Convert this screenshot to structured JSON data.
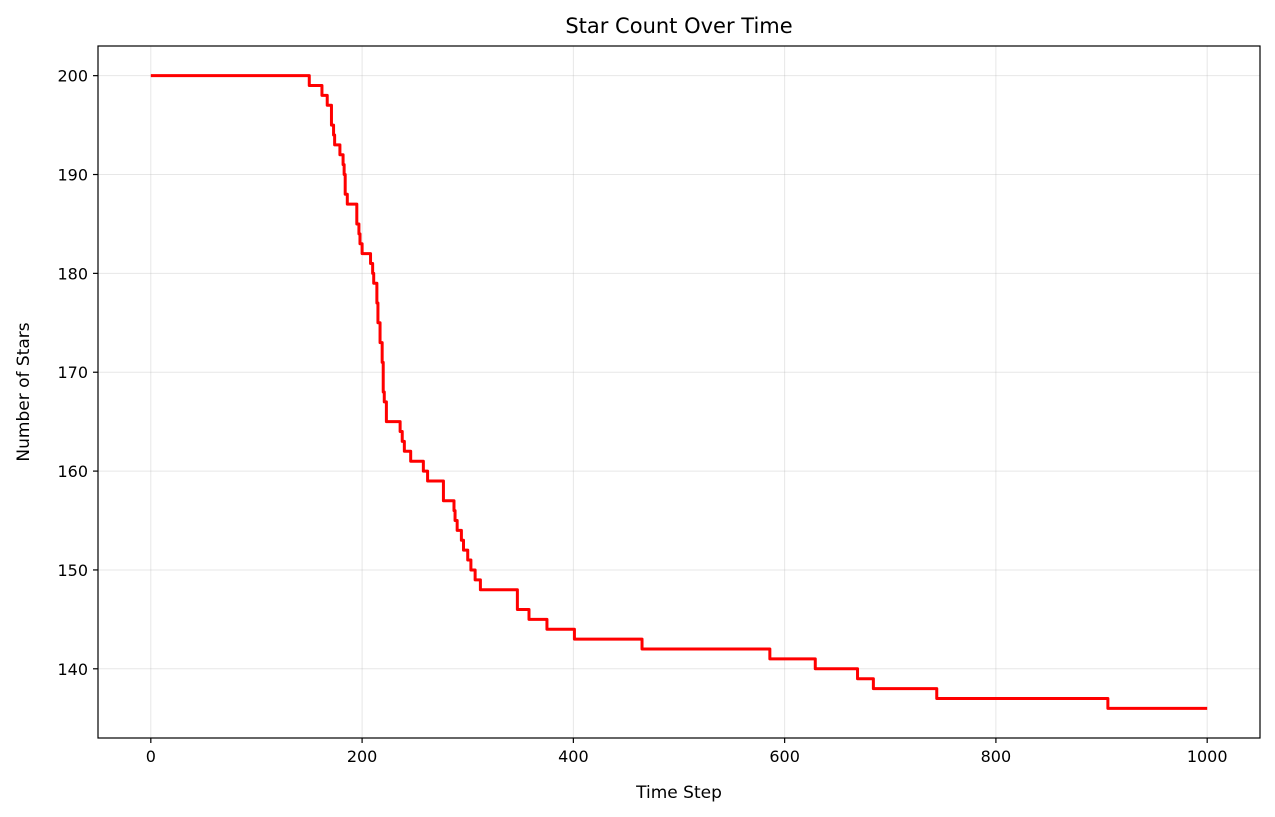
{
  "chart_data": {
    "type": "line",
    "title": "Star Count Over Time",
    "xlabel": "Time Step",
    "ylabel": "Number of Stars",
    "xlim": [
      -50,
      1050
    ],
    "ylim": [
      133,
      203
    ],
    "xticks": [
      0,
      200,
      400,
      600,
      800,
      1000
    ],
    "yticks": [
      140,
      150,
      160,
      170,
      180,
      190,
      200
    ],
    "grid": true,
    "series": [
      {
        "name": "Number of Stars",
        "color": "#ff0000",
        "drawstyle": "steps-post",
        "points": [
          [
            0,
            200
          ],
          [
            148,
            200
          ],
          [
            150,
            199
          ],
          [
            160,
            199
          ],
          [
            162,
            198
          ],
          [
            166,
            198
          ],
          [
            167,
            197
          ],
          [
            170,
            197
          ],
          [
            171,
            195
          ],
          [
            173,
            194
          ],
          [
            174,
            193
          ],
          [
            178,
            193
          ],
          [
            179,
            192
          ],
          [
            181,
            192
          ],
          [
            182,
            191
          ],
          [
            183,
            190
          ],
          [
            184,
            188
          ],
          [
            186,
            187
          ],
          [
            194,
            187
          ],
          [
            195,
            185
          ],
          [
            197,
            184
          ],
          [
            198,
            183
          ],
          [
            200,
            182
          ],
          [
            207,
            182
          ],
          [
            208,
            181
          ],
          [
            210,
            180
          ],
          [
            211,
            179
          ],
          [
            213,
            179
          ],
          [
            214,
            177
          ],
          [
            215,
            175
          ],
          [
            217,
            173
          ],
          [
            219,
            171
          ],
          [
            220,
            168
          ],
          [
            221,
            167
          ],
          [
            223,
            165
          ],
          [
            235,
            165
          ],
          [
            236,
            164
          ],
          [
            238,
            163
          ],
          [
            240,
            162
          ],
          [
            244,
            162
          ],
          [
            246,
            161
          ],
          [
            256,
            161
          ],
          [
            258,
            160
          ],
          [
            260,
            160
          ],
          [
            262,
            159
          ],
          [
            275,
            159
          ],
          [
            277,
            157
          ],
          [
            286,
            157
          ],
          [
            287,
            156
          ],
          [
            288,
            155
          ],
          [
            290,
            154
          ],
          [
            292,
            154
          ],
          [
            294,
            153
          ],
          [
            296,
            152
          ],
          [
            299,
            152
          ],
          [
            300,
            151
          ],
          [
            302,
            151
          ],
          [
            303,
            150
          ],
          [
            306,
            150
          ],
          [
            307,
            149
          ],
          [
            310,
            149
          ],
          [
            312,
            148
          ],
          [
            345,
            148
          ],
          [
            347,
            146
          ],
          [
            356,
            146
          ],
          [
            358,
            145
          ],
          [
            374,
            145
          ],
          [
            375,
            144
          ],
          [
            399,
            144
          ],
          [
            401,
            143
          ],
          [
            463,
            143
          ],
          [
            465,
            142
          ],
          [
            584,
            142
          ],
          [
            586,
            141
          ],
          [
            627,
            141
          ],
          [
            629,
            140
          ],
          [
            667,
            140
          ],
          [
            669,
            139
          ],
          [
            682,
            139
          ],
          [
            684,
            138
          ],
          [
            742,
            138
          ],
          [
            744,
            137
          ],
          [
            904,
            137
          ],
          [
            906,
            136
          ],
          [
            1000,
            136
          ]
        ]
      }
    ]
  }
}
